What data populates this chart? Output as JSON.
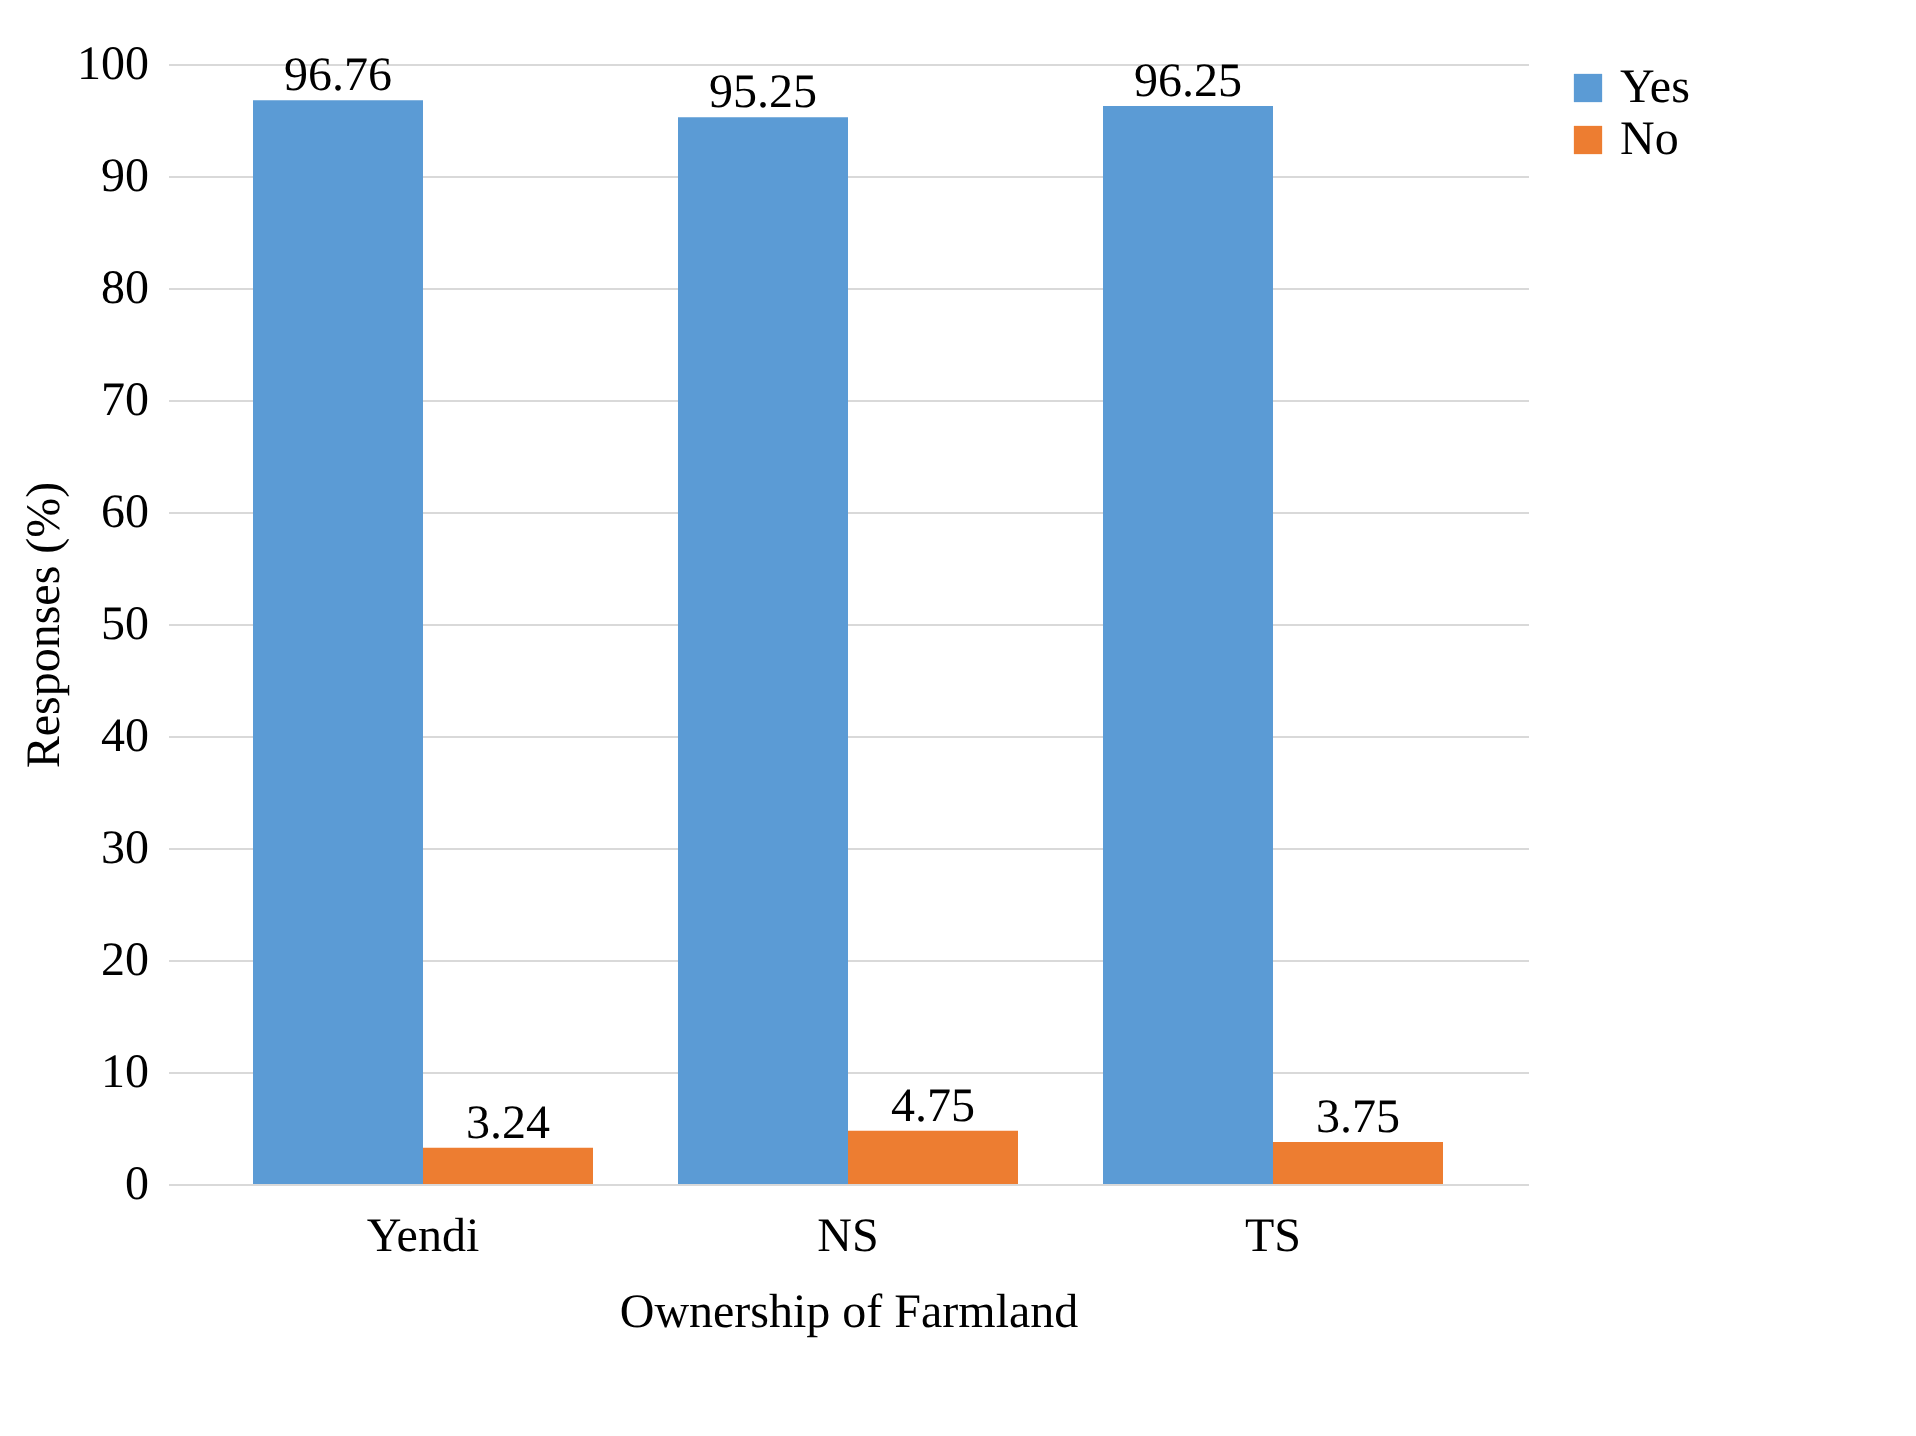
{
  "chart_data": {
    "type": "bar",
    "xlabel": "Ownership of Farmland",
    "ylabel": "Responses (%)",
    "categories": [
      "Yendi",
      "NS",
      "TS"
    ],
    "series": [
      {
        "name": "Yes",
        "color": "#5b9bd5",
        "values": [
          96.76,
          95.25,
          96.25
        ]
      },
      {
        "name": "No",
        "color": "#ed7d31",
        "values": [
          3.24,
          4.75,
          3.75
        ]
      }
    ],
    "ylim": [
      0,
      100
    ],
    "yticks": [
      0,
      10,
      20,
      30,
      40,
      50,
      60,
      70,
      80,
      90,
      100
    ],
    "grid": "y",
    "legend": "right",
    "data_labels": true
  }
}
